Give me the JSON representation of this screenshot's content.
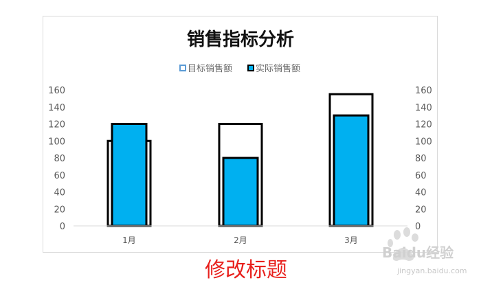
{
  "chart_data": {
    "type": "bar",
    "title": "销售指标分析",
    "categories": [
      "1月",
      "2月",
      "3月"
    ],
    "series": [
      {
        "name": "目标销售额",
        "values": [
          100,
          120,
          155
        ],
        "fill": "#ffffff",
        "stroke": "#000000"
      },
      {
        "name": "实际销售额",
        "values": [
          120,
          80,
          130
        ],
        "fill": "#00b0f0",
        "stroke": "#000000"
      }
    ],
    "ylim": [
      0,
      160
    ],
    "yticks": [
      0,
      20,
      40,
      60,
      80,
      100,
      120,
      140,
      160
    ],
    "secondary_axis": true,
    "legend_position": "top",
    "grid": false
  },
  "caption": "修改标题",
  "watermark": {
    "brand": "Baidu",
    "brand_cn": "经验",
    "url": "jingyan.baidu.com"
  },
  "colors": {
    "actual": "#00b0f0",
    "target_fill": "#ffffff",
    "outline": "#000000",
    "caption": "#e8201c"
  }
}
